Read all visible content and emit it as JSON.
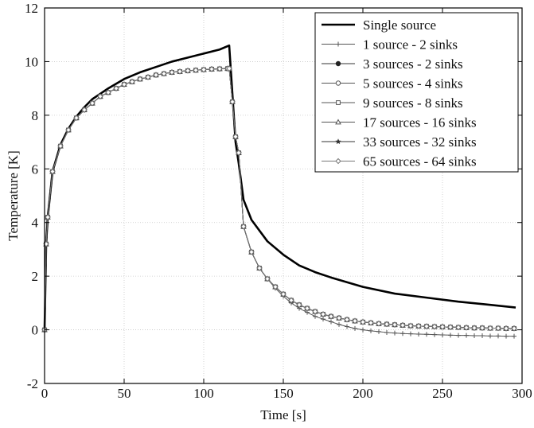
{
  "chart_data": {
    "type": "line",
    "xlabel": "Time [s]",
    "ylabel": "Temperature [K]",
    "xlim": [
      0,
      300
    ],
    "ylim": [
      -2,
      12
    ],
    "xticks": [
      0,
      50,
      100,
      150,
      200,
      250,
      300
    ],
    "yticks": [
      -2,
      0,
      2,
      4,
      6,
      8,
      10,
      12
    ],
    "grid": true,
    "legend_position": "top-right",
    "series": [
      {
        "name": "Single source",
        "color": "#000000",
        "marker": "none",
        "x": [
          0,
          1,
          2,
          5,
          10,
          15,
          20,
          25,
          30,
          40,
          50,
          60,
          70,
          80,
          90,
          100,
          110,
          116,
          118,
          120,
          122,
          125,
          130,
          140,
          150,
          160,
          170,
          180,
          200,
          220,
          240,
          260,
          280,
          296
        ],
        "y": [
          0,
          3.2,
          4.2,
          5.9,
          6.9,
          7.5,
          7.95,
          8.3,
          8.6,
          9.0,
          9.35,
          9.6,
          9.8,
          10.0,
          10.15,
          10.3,
          10.45,
          10.6,
          8.8,
          7.0,
          6.2,
          4.85,
          4.1,
          3.3,
          2.8,
          2.4,
          2.15,
          1.95,
          1.6,
          1.35,
          1.2,
          1.05,
          0.93,
          0.83
        ]
      },
      {
        "name": "1 source - 2 sinks",
        "color": "#555555",
        "marker": "plus",
        "x": [
          0,
          1,
          2,
          5,
          10,
          15,
          20,
          25,
          30,
          35,
          40,
          45,
          50,
          55,
          60,
          65,
          70,
          75,
          80,
          85,
          90,
          95,
          100,
          105,
          110,
          115,
          116,
          118,
          120,
          122,
          125,
          130,
          135,
          140,
          145,
          150,
          155,
          160,
          165,
          170,
          175,
          180,
          185,
          190,
          195,
          200,
          205,
          210,
          215,
          220,
          225,
          230,
          235,
          240,
          245,
          250,
          255,
          260,
          265,
          270,
          275,
          280,
          285,
          290,
          295
        ],
        "y": [
          0,
          3.2,
          4.2,
          5.9,
          6.85,
          7.45,
          7.9,
          8.2,
          8.45,
          8.7,
          8.85,
          9.0,
          9.15,
          9.25,
          9.35,
          9.42,
          9.5,
          9.55,
          9.6,
          9.63,
          9.66,
          9.68,
          9.7,
          9.72,
          9.73,
          9.74,
          9.74,
          8.5,
          7.2,
          6.6,
          3.85,
          2.9,
          2.3,
          1.9,
          1.55,
          1.25,
          1.0,
          0.8,
          0.65,
          0.5,
          0.4,
          0.3,
          0.2,
          0.12,
          0.05,
          0.0,
          -0.04,
          -0.07,
          -0.1,
          -0.12,
          -0.14,
          -0.15,
          -0.16,
          -0.17,
          -0.18,
          -0.19,
          -0.2,
          -0.21,
          -0.21,
          -0.22,
          -0.22,
          -0.23,
          -0.23,
          -0.24,
          -0.24
        ]
      },
      {
        "name": "3 sources - 2 sinks",
        "color": "#333333",
        "marker": "dot",
        "x": [
          0,
          1,
          2,
          5,
          10,
          15,
          20,
          25,
          30,
          35,
          40,
          45,
          50,
          55,
          60,
          65,
          70,
          75,
          80,
          85,
          90,
          95,
          100,
          105,
          110,
          115,
          116,
          118,
          120,
          122,
          125,
          130,
          135,
          140,
          145,
          150,
          155,
          160,
          165,
          170,
          175,
          180,
          185,
          190,
          195,
          200,
          205,
          210,
          215,
          220,
          225,
          230,
          235,
          240,
          245,
          250,
          255,
          260,
          265,
          270,
          275,
          280,
          285,
          290,
          295
        ],
        "y": [
          0,
          3.2,
          4.2,
          5.9,
          6.85,
          7.45,
          7.9,
          8.2,
          8.45,
          8.7,
          8.85,
          9.0,
          9.15,
          9.25,
          9.35,
          9.42,
          9.5,
          9.55,
          9.6,
          9.63,
          9.66,
          9.68,
          9.7,
          9.72,
          9.73,
          9.74,
          9.74,
          8.5,
          7.2,
          6.6,
          3.85,
          2.9,
          2.3,
          1.9,
          1.6,
          1.33,
          1.1,
          0.93,
          0.8,
          0.68,
          0.58,
          0.5,
          0.44,
          0.38,
          0.33,
          0.29,
          0.26,
          0.23,
          0.21,
          0.19,
          0.17,
          0.15,
          0.14,
          0.13,
          0.12,
          0.11,
          0.1,
          0.09,
          0.08,
          0.07,
          0.07,
          0.06,
          0.06,
          0.05,
          0.05
        ]
      },
      {
        "name": "5 sources - 4 sinks",
        "color": "#555555",
        "marker": "circle",
        "x": [
          0,
          1,
          2,
          5,
          10,
          15,
          20,
          25,
          30,
          35,
          40,
          45,
          50,
          55,
          60,
          65,
          70,
          75,
          80,
          85,
          90,
          95,
          100,
          105,
          110,
          115,
          116,
          118,
          120,
          122,
          125,
          130,
          135,
          140,
          145,
          150,
          155,
          160,
          165,
          170,
          175,
          180,
          185,
          190,
          195,
          200,
          205,
          210,
          215,
          220,
          225,
          230,
          235,
          240,
          245,
          250,
          255,
          260,
          265,
          270,
          275,
          280,
          285,
          290,
          295
        ],
        "y": [
          0,
          3.2,
          4.2,
          5.9,
          6.85,
          7.45,
          7.9,
          8.2,
          8.45,
          8.7,
          8.85,
          9.0,
          9.15,
          9.25,
          9.35,
          9.42,
          9.5,
          9.55,
          9.6,
          9.63,
          9.66,
          9.68,
          9.7,
          9.72,
          9.73,
          9.74,
          9.74,
          8.5,
          7.2,
          6.6,
          3.85,
          2.9,
          2.3,
          1.9,
          1.6,
          1.33,
          1.1,
          0.93,
          0.8,
          0.68,
          0.58,
          0.5,
          0.44,
          0.38,
          0.33,
          0.29,
          0.26,
          0.23,
          0.21,
          0.19,
          0.17,
          0.15,
          0.14,
          0.13,
          0.12,
          0.11,
          0.1,
          0.09,
          0.08,
          0.07,
          0.07,
          0.06,
          0.06,
          0.05,
          0.05
        ]
      },
      {
        "name": "9 sources - 8 sinks",
        "color": "#555555",
        "marker": "square",
        "x": [
          0,
          1,
          2,
          5,
          10,
          15,
          20,
          25,
          30,
          35,
          40,
          45,
          50,
          55,
          60,
          65,
          70,
          75,
          80,
          85,
          90,
          95,
          100,
          105,
          110,
          115,
          116,
          118,
          120,
          122,
          125,
          130,
          135,
          140,
          145,
          150,
          155,
          160,
          165,
          170,
          175,
          180,
          185,
          190,
          195,
          200,
          205,
          210,
          215,
          220,
          225,
          230,
          235,
          240,
          245,
          250,
          255,
          260,
          265,
          270,
          275,
          280,
          285,
          290,
          295
        ],
        "y": [
          0,
          3.2,
          4.2,
          5.9,
          6.85,
          7.45,
          7.9,
          8.2,
          8.45,
          8.7,
          8.85,
          9.0,
          9.15,
          9.25,
          9.35,
          9.42,
          9.5,
          9.55,
          9.6,
          9.63,
          9.66,
          9.68,
          9.7,
          9.72,
          9.73,
          9.74,
          9.74,
          8.5,
          7.2,
          6.6,
          3.85,
          2.9,
          2.3,
          1.9,
          1.6,
          1.33,
          1.1,
          0.93,
          0.8,
          0.68,
          0.58,
          0.5,
          0.44,
          0.38,
          0.33,
          0.29,
          0.26,
          0.23,
          0.21,
          0.19,
          0.17,
          0.15,
          0.14,
          0.13,
          0.12,
          0.11,
          0.1,
          0.09,
          0.08,
          0.07,
          0.07,
          0.06,
          0.06,
          0.05,
          0.05
        ]
      },
      {
        "name": "17 sources - 16 sinks",
        "color": "#555555",
        "marker": "triangle",
        "x": [
          0,
          1,
          2,
          5,
          10,
          15,
          20,
          25,
          30,
          35,
          40,
          45,
          50,
          55,
          60,
          65,
          70,
          75,
          80,
          85,
          90,
          95,
          100,
          105,
          110,
          115,
          116,
          118,
          120,
          122,
          125,
          130,
          135,
          140,
          145,
          150,
          155,
          160,
          165,
          170,
          175,
          180,
          185,
          190,
          195,
          200,
          205,
          210,
          215,
          220,
          225,
          230,
          235,
          240,
          245,
          250,
          255,
          260,
          265,
          270,
          275,
          280,
          285,
          290,
          295
        ],
        "y": [
          0,
          3.2,
          4.2,
          5.9,
          6.85,
          7.45,
          7.9,
          8.2,
          8.45,
          8.7,
          8.85,
          9.0,
          9.15,
          9.25,
          9.35,
          9.42,
          9.5,
          9.55,
          9.6,
          9.63,
          9.66,
          9.68,
          9.7,
          9.72,
          9.73,
          9.74,
          9.74,
          8.5,
          7.2,
          6.6,
          3.85,
          2.9,
          2.3,
          1.9,
          1.6,
          1.33,
          1.1,
          0.93,
          0.8,
          0.68,
          0.58,
          0.5,
          0.44,
          0.38,
          0.33,
          0.29,
          0.26,
          0.23,
          0.21,
          0.19,
          0.17,
          0.15,
          0.14,
          0.13,
          0.12,
          0.11,
          0.1,
          0.09,
          0.08,
          0.07,
          0.07,
          0.06,
          0.06,
          0.05,
          0.05
        ]
      },
      {
        "name": "33 sources - 32 sinks",
        "color": "#333333",
        "marker": "star",
        "x": [
          0,
          1,
          2,
          5,
          10,
          15,
          20,
          25,
          30,
          35,
          40,
          45,
          50,
          55,
          60,
          65,
          70,
          75,
          80,
          85,
          90,
          95,
          100,
          105,
          110,
          115,
          116,
          118,
          120,
          122,
          125,
          130,
          135,
          140,
          145,
          150,
          155,
          160,
          165,
          170,
          175,
          180,
          185,
          190,
          195,
          200,
          205,
          210,
          215,
          220,
          225,
          230,
          235,
          240,
          245,
          250,
          255,
          260,
          265,
          270,
          275,
          280,
          285,
          290,
          295
        ],
        "y": [
          0,
          3.2,
          4.2,
          5.9,
          6.85,
          7.45,
          7.9,
          8.2,
          8.45,
          8.7,
          8.85,
          9.0,
          9.15,
          9.25,
          9.35,
          9.42,
          9.5,
          9.55,
          9.6,
          9.63,
          9.66,
          9.68,
          9.7,
          9.72,
          9.73,
          9.74,
          9.74,
          8.5,
          7.2,
          6.6,
          3.85,
          2.9,
          2.3,
          1.9,
          1.6,
          1.33,
          1.1,
          0.93,
          0.8,
          0.68,
          0.58,
          0.5,
          0.44,
          0.38,
          0.33,
          0.29,
          0.26,
          0.23,
          0.21,
          0.19,
          0.17,
          0.15,
          0.14,
          0.13,
          0.12,
          0.11,
          0.1,
          0.09,
          0.08,
          0.07,
          0.07,
          0.06,
          0.06,
          0.05,
          0.05
        ]
      },
      {
        "name": "65 sources - 64 sinks",
        "color": "#777777",
        "marker": "diamond",
        "x": [
          0,
          1,
          2,
          5,
          10,
          15,
          20,
          25,
          30,
          35,
          40,
          45,
          50,
          55,
          60,
          65,
          70,
          75,
          80,
          85,
          90,
          95,
          100,
          105,
          110,
          115,
          116,
          118,
          120,
          122,
          125,
          130,
          135,
          140,
          145,
          150,
          155,
          160,
          165,
          170,
          175,
          180,
          185,
          190,
          195,
          200,
          205,
          210,
          215,
          220,
          225,
          230,
          235,
          240,
          245,
          250,
          255,
          260,
          265,
          270,
          275,
          280,
          285,
          290,
          295
        ],
        "y": [
          0,
          3.2,
          4.2,
          5.9,
          6.85,
          7.45,
          7.9,
          8.2,
          8.45,
          8.7,
          8.85,
          9.0,
          9.15,
          9.25,
          9.35,
          9.42,
          9.5,
          9.55,
          9.6,
          9.63,
          9.66,
          9.68,
          9.7,
          9.72,
          9.73,
          9.74,
          9.74,
          8.5,
          7.2,
          6.6,
          3.85,
          2.9,
          2.3,
          1.9,
          1.6,
          1.33,
          1.1,
          0.93,
          0.8,
          0.68,
          0.58,
          0.5,
          0.44,
          0.38,
          0.33,
          0.29,
          0.26,
          0.23,
          0.21,
          0.19,
          0.17,
          0.15,
          0.14,
          0.13,
          0.12,
          0.11,
          0.1,
          0.09,
          0.08,
          0.07,
          0.07,
          0.06,
          0.06,
          0.05,
          0.05
        ]
      }
    ]
  }
}
